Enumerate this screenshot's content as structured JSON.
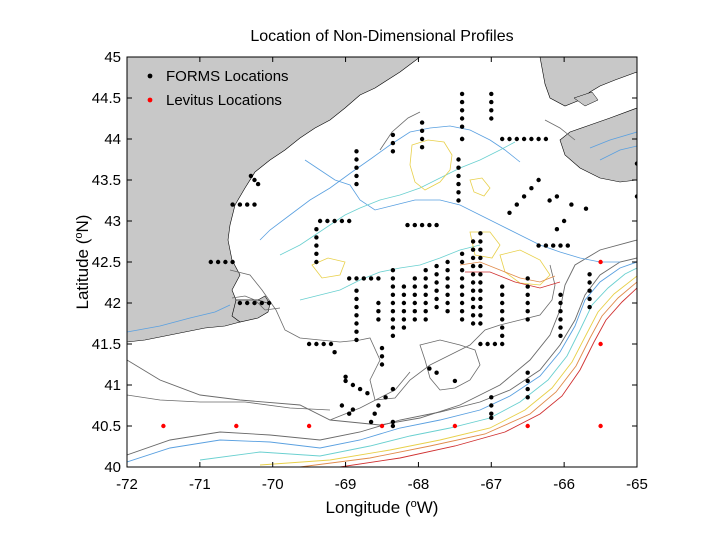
{
  "chart_data": {
    "type": "scatter",
    "title": "Location of Non-Dimensional Profiles",
    "xlabel": "Longitude (°W)",
    "ylabel": "Latitude (°N)",
    "xlim": [
      -72,
      -65
    ],
    "ylim": [
      40,
      45
    ],
    "xticks": [
      -72,
      -71,
      -70,
      -69,
      -68,
      -67,
      -66,
      -65
    ],
    "yticks": [
      40,
      40.5,
      41,
      41.5,
      42,
      42.5,
      43,
      43.5,
      44,
      44.5,
      45
    ],
    "grid": false,
    "legend_position": "top-left",
    "series": [
      {
        "name": "FORMS Locations",
        "color": "#000000",
        "points": [
          [
            -67.4,
            44.0
          ],
          [
            -67.4,
            44.0
          ],
          [
            -67.4,
            44.55
          ],
          [
            -67.4,
            44.45
          ],
          [
            -67.4,
            44.35
          ],
          [
            -67.4,
            44.25
          ],
          [
            -67.4,
            44.15
          ],
          [
            -67.0,
            44.55
          ],
          [
            -67.0,
            44.45
          ],
          [
            -67.0,
            44.35
          ],
          [
            -67.0,
            44.25
          ],
          [
            -66.65,
            44.0
          ],
          [
            -66.55,
            44.0
          ],
          [
            -66.45,
            44.0
          ],
          [
            -66.35,
            44.0
          ],
          [
            -66.25,
            44.0
          ],
          [
            -66.85,
            44.0
          ],
          [
            -66.75,
            44.0
          ],
          [
            -67.95,
            44.2
          ],
          [
            -67.95,
            44.1
          ],
          [
            -67.95,
            44.0
          ],
          [
            -67.95,
            43.9
          ],
          [
            -68.35,
            43.85
          ],
          [
            -68.35,
            43.95
          ],
          [
            -68.35,
            44.05
          ],
          [
            -68.85,
            43.85
          ],
          [
            -68.85,
            43.75
          ],
          [
            -68.85,
            43.65
          ],
          [
            -68.85,
            43.55
          ],
          [
            -68.85,
            43.45
          ],
          [
            -67.45,
            43.55
          ],
          [
            -67.45,
            43.45
          ],
          [
            -67.45,
            43.35
          ],
          [
            -67.45,
            43.25
          ],
          [
            -67.45,
            43.75
          ],
          [
            -67.45,
            43.65
          ],
          [
            -66.35,
            43.5
          ],
          [
            -66.45,
            43.4
          ],
          [
            -66.55,
            43.3
          ],
          [
            -66.65,
            43.2
          ],
          [
            -66.75,
            43.1
          ],
          [
            -66.1,
            43.3
          ],
          [
            -66.2,
            43.25
          ],
          [
            -65.9,
            43.2
          ],
          [
            -65.7,
            43.15
          ],
          [
            -65.0,
            43.7
          ],
          [
            -65.0,
            43.3
          ],
          [
            -70.25,
            43.5
          ],
          [
            -70.2,
            43.45
          ],
          [
            -70.3,
            43.55
          ],
          [
            -70.55,
            43.2
          ],
          [
            -70.45,
            43.2
          ],
          [
            -70.35,
            43.2
          ],
          [
            -70.25,
            43.2
          ],
          [
            -69.35,
            43.0
          ],
          [
            -69.25,
            43.0
          ],
          [
            -69.15,
            43.0
          ],
          [
            -69.05,
            43.0
          ],
          [
            -68.95,
            43.0
          ],
          [
            -68.15,
            42.95
          ],
          [
            -68.05,
            42.95
          ],
          [
            -67.95,
            42.95
          ],
          [
            -67.85,
            42.95
          ],
          [
            -67.75,
            42.95
          ],
          [
            -69.4,
            42.9
          ],
          [
            -69.4,
            42.8
          ],
          [
            -69.4,
            42.7
          ],
          [
            -69.4,
            42.6
          ],
          [
            -69.4,
            42.5
          ],
          [
            -70.85,
            42.5
          ],
          [
            -70.75,
            42.5
          ],
          [
            -70.65,
            42.5
          ],
          [
            -70.55,
            42.5
          ],
          [
            -70.45,
            42.0
          ],
          [
            -70.35,
            42.0
          ],
          [
            -70.25,
            42.0
          ],
          [
            -70.15,
            42.0
          ],
          [
            -70.05,
            42.0
          ],
          [
            -68.95,
            42.3
          ],
          [
            -68.85,
            42.3
          ],
          [
            -68.75,
            42.3
          ],
          [
            -68.65,
            42.3
          ],
          [
            -68.55,
            42.3
          ],
          [
            -67.15,
            42.85
          ],
          [
            -67.15,
            42.75
          ],
          [
            -67.15,
            42.65
          ],
          [
            -67.15,
            42.55
          ],
          [
            -67.15,
            42.45
          ],
          [
            -67.15,
            42.35
          ],
          [
            -67.15,
            42.25
          ],
          [
            -67.15,
            42.15
          ],
          [
            -67.15,
            42.05
          ],
          [
            -67.15,
            41.95
          ],
          [
            -67.15,
            41.85
          ],
          [
            -67.15,
            41.75
          ],
          [
            -67.25,
            42.75
          ],
          [
            -67.25,
            42.65
          ],
          [
            -67.25,
            42.55
          ],
          [
            -67.25,
            42.45
          ],
          [
            -67.25,
            42.35
          ],
          [
            -67.25,
            42.25
          ],
          [
            -67.25,
            42.15
          ],
          [
            -67.25,
            42.05
          ],
          [
            -67.25,
            41.95
          ],
          [
            -67.25,
            41.85
          ],
          [
            -67.25,
            41.75
          ],
          [
            -67.4,
            42.6
          ],
          [
            -67.4,
            42.5
          ],
          [
            -67.4,
            42.4
          ],
          [
            -67.4,
            42.3
          ],
          [
            -67.4,
            42.2
          ],
          [
            -67.4,
            42.1
          ],
          [
            -67.4,
            42.0
          ],
          [
            -67.4,
            41.9
          ],
          [
            -67.4,
            41.8
          ],
          [
            -67.6,
            42.5
          ],
          [
            -67.6,
            42.4
          ],
          [
            -67.6,
            42.3
          ],
          [
            -67.6,
            42.2
          ],
          [
            -67.6,
            42.1
          ],
          [
            -67.6,
            42.0
          ],
          [
            -67.6,
            41.9
          ],
          [
            -67.75,
            42.45
          ],
          [
            -67.75,
            42.35
          ],
          [
            -67.75,
            42.25
          ],
          [
            -67.75,
            42.15
          ],
          [
            -67.75,
            42.05
          ],
          [
            -67.75,
            41.95
          ],
          [
            -67.9,
            42.4
          ],
          [
            -67.9,
            42.3
          ],
          [
            -67.9,
            42.2
          ],
          [
            -67.9,
            42.1
          ],
          [
            -67.9,
            42.0
          ],
          [
            -67.9,
            41.9
          ],
          [
            -67.9,
            41.8
          ],
          [
            -68.05,
            42.3
          ],
          [
            -68.05,
            42.2
          ],
          [
            -68.05,
            42.1
          ],
          [
            -68.05,
            42.0
          ],
          [
            -68.05,
            41.9
          ],
          [
            -68.05,
            41.8
          ],
          [
            -68.2,
            42.2
          ],
          [
            -68.2,
            42.1
          ],
          [
            -68.2,
            42.0
          ],
          [
            -68.2,
            41.9
          ],
          [
            -68.2,
            41.8
          ],
          [
            -68.2,
            41.7
          ],
          [
            -68.35,
            42.4
          ],
          [
            -68.35,
            42.3
          ],
          [
            -68.35,
            42.2
          ],
          [
            -68.35,
            42.1
          ],
          [
            -68.35,
            42.0
          ],
          [
            -68.35,
            41.9
          ],
          [
            -68.35,
            41.8
          ],
          [
            -68.35,
            41.7
          ],
          [
            -68.35,
            41.6
          ],
          [
            -68.55,
            42.0
          ],
          [
            -68.55,
            41.9
          ],
          [
            -68.55,
            41.8
          ],
          [
            -68.85,
            42.15
          ],
          [
            -68.85,
            42.05
          ],
          [
            -68.85,
            41.95
          ],
          [
            -68.85,
            41.85
          ],
          [
            -68.85,
            41.75
          ],
          [
            -68.85,
            41.65
          ],
          [
            -68.85,
            41.55
          ],
          [
            -66.85,
            42.2
          ],
          [
            -66.85,
            42.1
          ],
          [
            -66.85,
            42.0
          ],
          [
            -66.85,
            41.9
          ],
          [
            -66.85,
            41.8
          ],
          [
            -66.85,
            41.7
          ],
          [
            -66.85,
            41.6
          ],
          [
            -66.85,
            41.5
          ],
          [
            -66.95,
            41.5
          ],
          [
            -67.05,
            41.5
          ],
          [
            -67.15,
            41.5
          ],
          [
            -66.5,
            42.3
          ],
          [
            -66.5,
            42.2
          ],
          [
            -66.5,
            42.1
          ],
          [
            -66.5,
            42.0
          ],
          [
            -66.5,
            41.9
          ],
          [
            -66.5,
            41.8
          ],
          [
            -66.05,
            42.1
          ],
          [
            -66.05,
            42.0
          ],
          [
            -66.05,
            41.9
          ],
          [
            -66.05,
            41.8
          ],
          [
            -66.05,
            41.7
          ],
          [
            -66.05,
            41.6
          ],
          [
            -66.35,
            42.7
          ],
          [
            -66.25,
            42.7
          ],
          [
            -66.15,
            42.7
          ],
          [
            -66.05,
            42.7
          ],
          [
            -65.95,
            42.7
          ],
          [
            -66.1,
            42.9
          ],
          [
            -66.0,
            43.0
          ],
          [
            -65.65,
            42.35
          ],
          [
            -65.65,
            42.25
          ],
          [
            -65.65,
            42.15
          ],
          [
            -65.65,
            42.05
          ],
          [
            -65.65,
            41.95
          ],
          [
            -69.5,
            41.5
          ],
          [
            -69.4,
            41.5
          ],
          [
            -69.3,
            41.5
          ],
          [
            -69.2,
            41.5
          ],
          [
            -69.15,
            41.4
          ],
          [
            -69.0,
            41.1
          ],
          [
            -69.0,
            41.05
          ],
          [
            -68.9,
            41.0
          ],
          [
            -68.8,
            40.95
          ],
          [
            -68.7,
            40.9
          ],
          [
            -68.5,
            41.45
          ],
          [
            -68.5,
            41.35
          ],
          [
            -68.5,
            41.25
          ],
          [
            -68.9,
            40.7
          ],
          [
            -68.95,
            40.65
          ],
          [
            -69.05,
            40.75
          ],
          [
            -68.35,
            40.95
          ],
          [
            -68.45,
            40.85
          ],
          [
            -68.55,
            40.75
          ],
          [
            -68.6,
            40.65
          ],
          [
            -68.65,
            40.55
          ],
          [
            -68.35,
            40.55
          ],
          [
            -68.35,
            40.5
          ],
          [
            -67.85,
            41.2
          ],
          [
            -67.75,
            41.15
          ],
          [
            -67.5,
            41.05
          ],
          [
            -67.0,
            40.85
          ],
          [
            -67.0,
            40.75
          ],
          [
            -67.0,
            40.65
          ],
          [
            -67.0,
            40.6
          ],
          [
            -66.5,
            41.15
          ],
          [
            -66.5,
            41.05
          ],
          [
            -66.5,
            40.95
          ],
          [
            -66.5,
            40.85
          ]
        ]
      },
      {
        "name": "Levitus Locations",
        "color": "#ff0000",
        "points": [
          [
            -71.5,
            40.5
          ],
          [
            -70.5,
            40.5
          ],
          [
            -69.5,
            40.5
          ],
          [
            -68.5,
            40.5
          ],
          [
            -67.5,
            40.5
          ],
          [
            -66.5,
            40.5
          ],
          [
            -65.5,
            40.5
          ],
          [
            -65.5,
            41.5
          ],
          [
            -65.5,
            42.5
          ]
        ]
      }
    ]
  }
}
